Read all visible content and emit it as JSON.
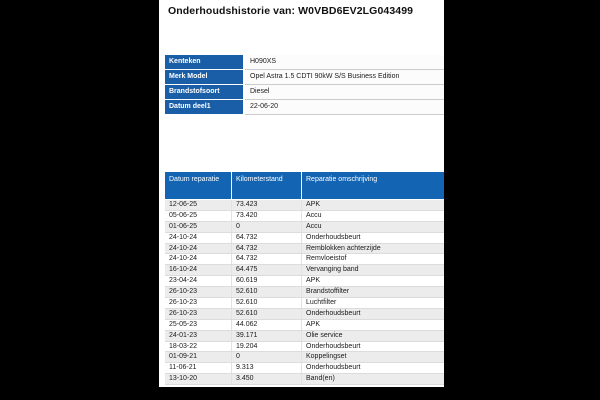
{
  "title": "Onderhoudshistorie van: W0VBD6EV2LG043499",
  "colors": {
    "viewer_background": "#000000",
    "page_background": "#ffffff",
    "info_label_blue": "#1b5ea8",
    "history_header_blue": "#1365b4",
    "row_stripe_gray": "#ececec",
    "row_border_gray": "#dcdcdc",
    "text": "#1a1a1a"
  },
  "vehicle_info": {
    "rows": [
      {
        "label": "Kenteken",
        "value": "H090XS"
      },
      {
        "label": "Merk Model",
        "value": "Opel Astra 1.5 CDTI 90kW S/S Business Edition"
      },
      {
        "label": "Brandstofsoort",
        "value": "Diesel"
      },
      {
        "label": "Datum deel1",
        "value": "22-06-20"
      }
    ]
  },
  "history": {
    "columns": [
      "Datum reparatie",
      "Kilometerstand",
      "Reparatie omschrijving"
    ],
    "rows": [
      {
        "date": "12-06-25",
        "km": "73.423",
        "description": "APK"
      },
      {
        "date": "05-06-25",
        "km": "73.420",
        "description": "Accu"
      },
      {
        "date": "01-06-25",
        "km": "0",
        "description": "Accu"
      },
      {
        "date": "24-10-24",
        "km": "64.732",
        "description": "Onderhoudsbeurt"
      },
      {
        "date": "24-10-24",
        "km": "64.732",
        "description": "Remblokken achterzijde"
      },
      {
        "date": "24-10-24",
        "km": "64.732",
        "description": "Remvloeistof"
      },
      {
        "date": "16-10-24",
        "km": "64.475",
        "description": "Vervanging band"
      },
      {
        "date": "23-04-24",
        "km": "60.619",
        "description": "APK"
      },
      {
        "date": "26-10-23",
        "km": "52.610",
        "description": "Brandstoffilter"
      },
      {
        "date": "26-10-23",
        "km": "52.610",
        "description": "Luchtfilter"
      },
      {
        "date": "26-10-23",
        "km": "52.610",
        "description": "Onderhoudsbeurt"
      },
      {
        "date": "25-05-23",
        "km": "44.062",
        "description": "APK"
      },
      {
        "date": "24-01-23",
        "km": "39.171",
        "description": "Olie service"
      },
      {
        "date": "18-03-22",
        "km": "19.204",
        "description": "Onderhoudsbeurt"
      },
      {
        "date": "01-09-21",
        "km": "0",
        "description": "Koppelingset"
      },
      {
        "date": "11-06-21",
        "km": "9.313",
        "description": "Onderhoudsbeurt"
      },
      {
        "date": "13-10-20",
        "km": "3.450",
        "description": "Band(en)"
      }
    ]
  }
}
